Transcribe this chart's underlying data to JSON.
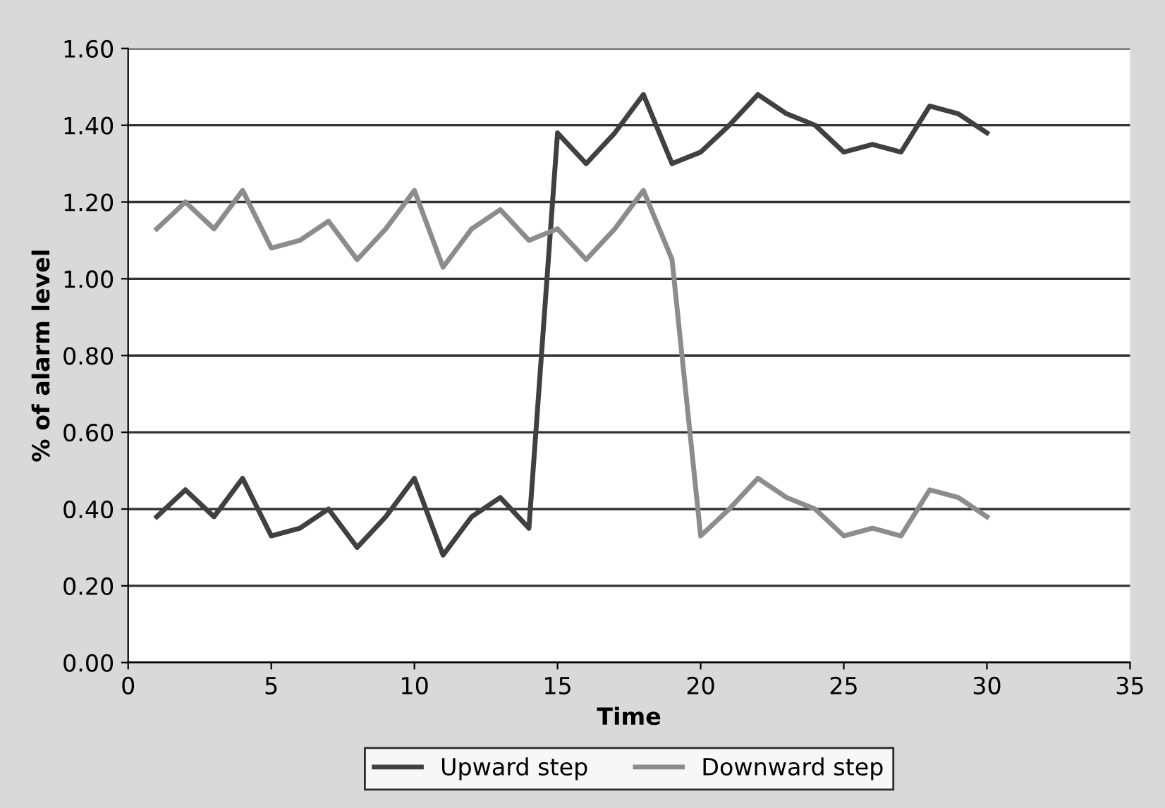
{
  "chart_data": {
    "type": "line",
    "xlabel": "Time",
    "ylabel": "% of alarm level",
    "x": [
      1,
      2,
      3,
      4,
      5,
      6,
      7,
      8,
      9,
      10,
      11,
      12,
      13,
      14,
      15,
      16,
      17,
      18,
      19,
      20,
      21,
      22,
      23,
      24,
      25,
      26,
      27,
      28,
      29,
      30
    ],
    "series": [
      {
        "name": "Upward step",
        "color": "#404040",
        "values": [
          0.38,
          0.45,
          0.38,
          0.48,
          0.33,
          0.35,
          0.4,
          0.3,
          0.38,
          0.48,
          0.28,
          0.38,
          0.43,
          0.35,
          1.38,
          1.3,
          1.38,
          1.48,
          1.3,
          1.33,
          1.4,
          1.48,
          1.43,
          1.4,
          1.33,
          1.35,
          1.33,
          1.45,
          1.43,
          1.38
        ]
      },
      {
        "name": "Downward step",
        "color": "#8c8c8c",
        "values": [
          1.13,
          1.2,
          1.13,
          1.23,
          1.08,
          1.1,
          1.15,
          1.05,
          1.13,
          1.23,
          1.03,
          1.13,
          1.18,
          1.1,
          1.13,
          1.05,
          1.13,
          1.23,
          1.05,
          0.33,
          0.4,
          0.48,
          0.43,
          0.4,
          0.33,
          0.35,
          0.33,
          0.45,
          0.43,
          0.38
        ]
      }
    ],
    "xlim": [
      0,
      35
    ],
    "xticks": [
      0,
      5,
      10,
      15,
      20,
      25,
      30,
      35
    ],
    "ylim": [
      0,
      1.6
    ],
    "yticks": [
      {
        "value": 0,
        "label": "0.00"
      },
      {
        "value": 0.2,
        "label": "0.20"
      },
      {
        "value": 0.4,
        "label": "0.40"
      },
      {
        "value": 0.6,
        "label": "0.60"
      },
      {
        "value": 0.8,
        "label": "0.80"
      },
      {
        "value": 1.0,
        "label": "1.00"
      },
      {
        "value": 1.2,
        "label": "1.20"
      },
      {
        "value": 1.4,
        "label": "1.40"
      },
      {
        "value": 1.6,
        "label": "1.60"
      }
    ],
    "grid": "y",
    "legend": "bottom",
    "marker": "none",
    "line_style": "solid"
  }
}
